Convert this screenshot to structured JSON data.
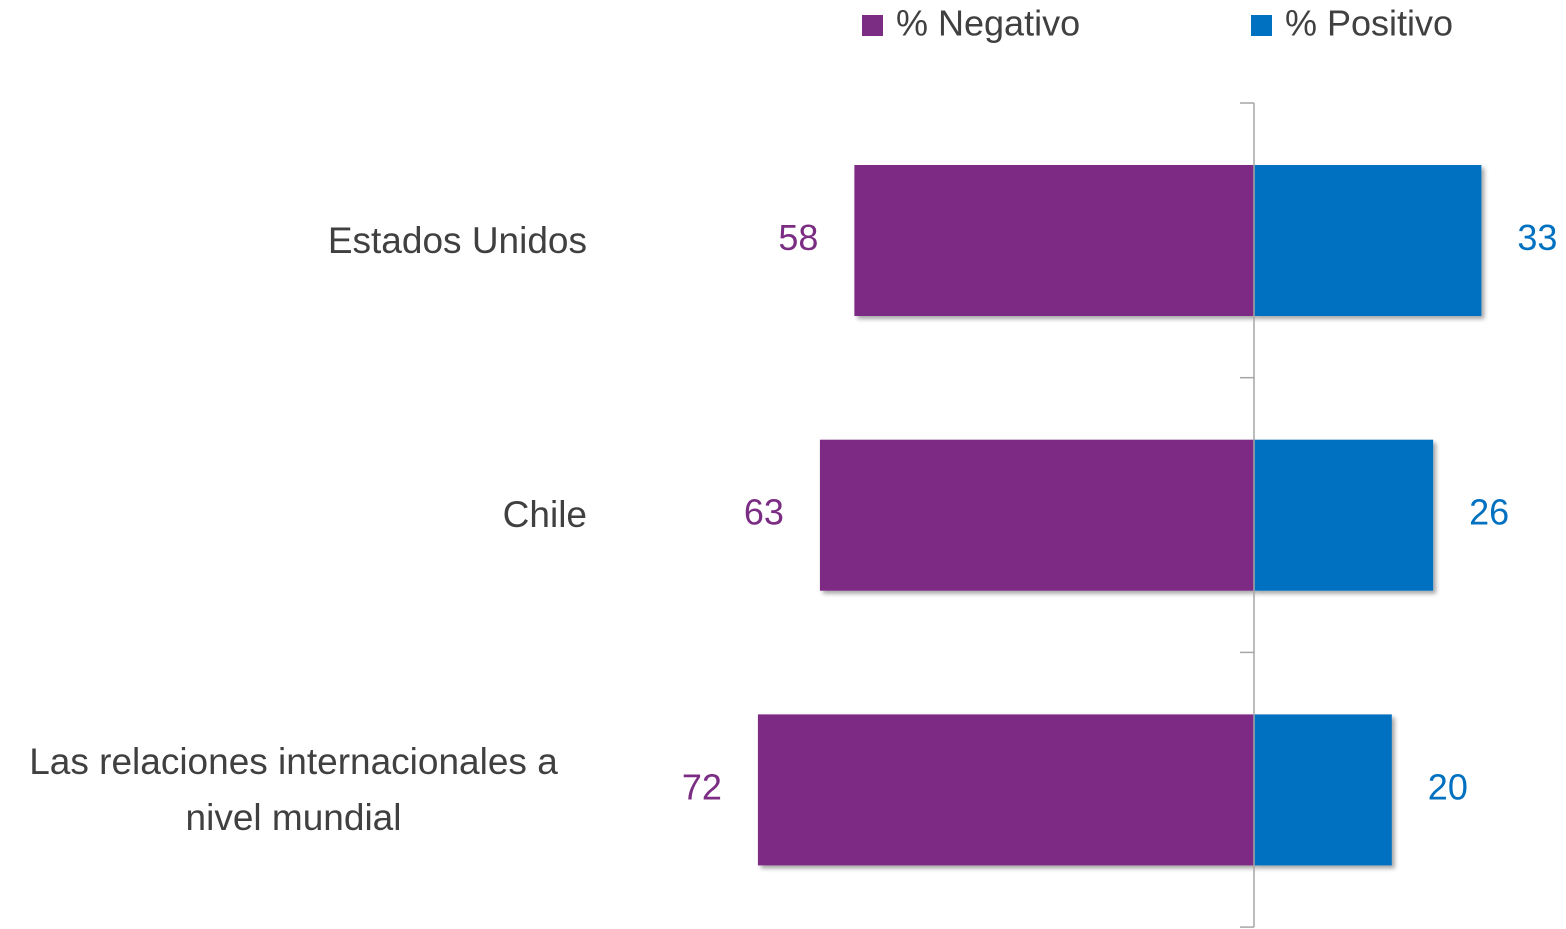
{
  "chart_data": {
    "type": "diverging_bar",
    "categories": [
      "Estados Unidos",
      "Chile",
      "Las relaciones internacionales a nivel mundial"
    ],
    "series": [
      {
        "name": "% Negativo",
        "color": "#7b2c83",
        "values": [
          58,
          63,
          72
        ]
      },
      {
        "name": "% Positivo",
        "color": "#0070c0",
        "values": [
          33,
          26,
          20
        ]
      }
    ]
  }
}
